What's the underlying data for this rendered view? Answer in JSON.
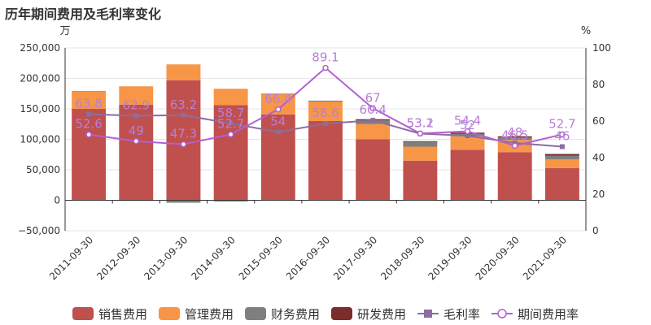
{
  "chart_data": {
    "type": "bar",
    "title": "历年期间费用及毛利率变化",
    "left_axis_unit": "万",
    "right_axis_unit": "%",
    "categories": [
      "2011-09-30",
      "2012-09-30",
      "2013-09-30",
      "2014-09-30",
      "2015-09-30",
      "2016-09-30",
      "2017-09-30",
      "2018-09-30",
      "2019-09-30",
      "2020-09-30",
      "2021-09-30"
    ],
    "ylim_left": [
      -50000,
      250000
    ],
    "yticks_left": [
      "250,000",
      "200,000",
      "150,000",
      "100,000",
      "50,000",
      "0",
      "−50,000"
    ],
    "ylim_right": [
      0,
      100
    ],
    "yticks_right": [
      "100",
      "80",
      "60",
      "40",
      "20",
      "0"
    ],
    "stacked_series": [
      {
        "name": "销售费用",
        "color": "#c0504d",
        "values": [
          150000,
          157000,
          197000,
          156000,
          141000,
          130000,
          100000,
          65000,
          83000,
          79000,
          53000
        ]
      },
      {
        "name": "管理费用",
        "color": "#f79646",
        "values": [
          28000,
          30000,
          26000,
          27000,
          33000,
          32000,
          25000,
          23000,
          22000,
          20000,
          14000
        ]
      },
      {
        "name": "财务费用",
        "color": "#7f7f7f",
        "values": [
          1000,
          -1000,
          -4000,
          -2000,
          1000,
          1500,
          6000,
          8000,
          4000,
          4000,
          6000
        ]
      },
      {
        "name": "研发费用",
        "color": "#7b2c2c",
        "values": [
          0,
          0,
          0,
          0,
          0,
          0,
          2000,
          1000,
          2000,
          2000,
          3000
        ]
      }
    ],
    "line_series": [
      {
        "name": "毛利率",
        "color": "#8c6d9e",
        "marker": "square",
        "values": [
          63.8,
          62.9,
          63.2,
          58.7,
          54.0,
          58.6,
          60.4,
          53.1,
          52.0,
          48.0,
          46.0
        ]
      },
      {
        "name": "期间费用率",
        "color": "#b45fd0",
        "marker": "circle",
        "values": [
          52.6,
          49.0,
          47.3,
          52.7,
          66.4,
          89.1,
          67.0,
          53.2,
          54.4,
          46.5,
          52.7
        ]
      }
    ],
    "line_labels": [
      [
        "63.8",
        "62.9",
        "63.2",
        "58.7",
        "54",
        "58.6",
        "60.4",
        "53.1",
        "52",
        "48",
        "46"
      ],
      [
        "52.6",
        "49",
        "47.3",
        "52.7",
        "66.4",
        "89.1",
        "67",
        "53.2",
        "54.4",
        "46.5",
        "52.7"
      ]
    ],
    "grid": "horizontal",
    "legend_position": "bottom"
  }
}
